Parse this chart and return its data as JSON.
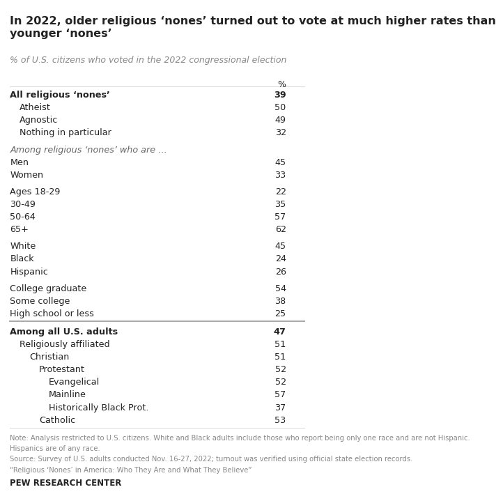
{
  "title": "In 2022, older religious ‘nones’ turned out to vote at much higher rates than\nyounger ‘nones’",
  "subtitle": "% of U.S. citizens who voted in the 2022 congressional election",
  "col_header": "%",
  "rows": [
    {
      "label": "All religious ‘nones’",
      "value": "39",
      "indent": 0,
      "bold": true,
      "italic": false,
      "color": "#222222",
      "spacer_before": false,
      "divider_before": false
    },
    {
      "label": "Atheist",
      "value": "50",
      "indent": 1,
      "bold": false,
      "italic": false,
      "color": "#222222",
      "spacer_before": false,
      "divider_before": false
    },
    {
      "label": "Agnostic",
      "value": "49",
      "indent": 1,
      "bold": false,
      "italic": false,
      "color": "#222222",
      "spacer_before": false,
      "divider_before": false
    },
    {
      "label": "Nothing in particular",
      "value": "32",
      "indent": 1,
      "bold": false,
      "italic": false,
      "color": "#222222",
      "spacer_before": false,
      "divider_before": false
    },
    {
      "label": "Among religious ‘nones’ who are …",
      "value": "",
      "indent": 0,
      "bold": false,
      "italic": true,
      "color": "#666666",
      "spacer_before": true,
      "divider_before": false
    },
    {
      "label": "Men",
      "value": "45",
      "indent": 0,
      "bold": false,
      "italic": false,
      "color": "#222222",
      "spacer_before": false,
      "divider_before": false
    },
    {
      "label": "Women",
      "value": "33",
      "indent": 0,
      "bold": false,
      "italic": false,
      "color": "#222222",
      "spacer_before": false,
      "divider_before": false
    },
    {
      "label": "Ages 18-29",
      "value": "22",
      "indent": 0,
      "bold": false,
      "italic": false,
      "color": "#222222",
      "spacer_before": true,
      "divider_before": false
    },
    {
      "label": "30-49",
      "value": "35",
      "indent": 0,
      "bold": false,
      "italic": false,
      "color": "#222222",
      "spacer_before": false,
      "divider_before": false
    },
    {
      "label": "50-64",
      "value": "57",
      "indent": 0,
      "bold": false,
      "italic": false,
      "color": "#222222",
      "spacer_before": false,
      "divider_before": false
    },
    {
      "label": "65+",
      "value": "62",
      "indent": 0,
      "bold": false,
      "italic": false,
      "color": "#222222",
      "spacer_before": false,
      "divider_before": false
    },
    {
      "label": "White",
      "value": "45",
      "indent": 0,
      "bold": false,
      "italic": false,
      "color": "#222222",
      "spacer_before": true,
      "divider_before": false
    },
    {
      "label": "Black",
      "value": "24",
      "indent": 0,
      "bold": false,
      "italic": false,
      "color": "#222222",
      "spacer_before": false,
      "divider_before": false
    },
    {
      "label": "Hispanic",
      "value": "26",
      "indent": 0,
      "bold": false,
      "italic": false,
      "color": "#222222",
      "spacer_before": false,
      "divider_before": false
    },
    {
      "label": "College graduate",
      "value": "54",
      "indent": 0,
      "bold": false,
      "italic": false,
      "color": "#222222",
      "spacer_before": true,
      "divider_before": false
    },
    {
      "label": "Some college",
      "value": "38",
      "indent": 0,
      "bold": false,
      "italic": false,
      "color": "#222222",
      "spacer_before": false,
      "divider_before": false
    },
    {
      "label": "High school or less",
      "value": "25",
      "indent": 0,
      "bold": false,
      "italic": false,
      "color": "#222222",
      "spacer_before": false,
      "divider_before": false
    },
    {
      "label": "Among all U.S. adults",
      "value": "47",
      "indent": 0,
      "bold": true,
      "italic": false,
      "color": "#222222",
      "spacer_before": false,
      "divider_before": true
    },
    {
      "label": "Religiously affiliated",
      "value": "51",
      "indent": 1,
      "bold": false,
      "italic": false,
      "color": "#222222",
      "spacer_before": false,
      "divider_before": false
    },
    {
      "label": "Christian",
      "value": "51",
      "indent": 2,
      "bold": false,
      "italic": false,
      "color": "#222222",
      "spacer_before": false,
      "divider_before": false
    },
    {
      "label": "Protestant",
      "value": "52",
      "indent": 3,
      "bold": false,
      "italic": false,
      "color": "#222222",
      "spacer_before": false,
      "divider_before": false
    },
    {
      "label": "Evangelical",
      "value": "52",
      "indent": 4,
      "bold": false,
      "italic": false,
      "color": "#222222",
      "spacer_before": false,
      "divider_before": false
    },
    {
      "label": "Mainline",
      "value": "57",
      "indent": 4,
      "bold": false,
      "italic": false,
      "color": "#222222",
      "spacer_before": false,
      "divider_before": false
    },
    {
      "label": "Historically Black Prot.",
      "value": "37",
      "indent": 4,
      "bold": false,
      "italic": false,
      "color": "#222222",
      "spacer_before": false,
      "divider_before": false
    },
    {
      "label": "Catholic",
      "value": "53",
      "indent": 3,
      "bold": false,
      "italic": false,
      "color": "#222222",
      "spacer_before": false,
      "divider_before": false
    }
  ],
  "note_lines": [
    "Note: Analysis restricted to U.S. citizens. White and Black adults include those who report being only one race and are not Hispanic.",
    "Hispanics are of any race.",
    "Source: Survey of U.S. adults conducted Nov. 16-27, 2022; turnout was verified using official state election records.",
    "“Religious ‘Nones’ in America: Who They Are and What They Believe”"
  ],
  "footer": "PEW RESEARCH CENTER",
  "bg_color": "#ffffff",
  "title_color": "#222222",
  "subtitle_color": "#888888",
  "note_color": "#888888",
  "footer_color": "#222222",
  "divider_color": "#aaaaaa",
  "light_divider_color": "#dddddd"
}
